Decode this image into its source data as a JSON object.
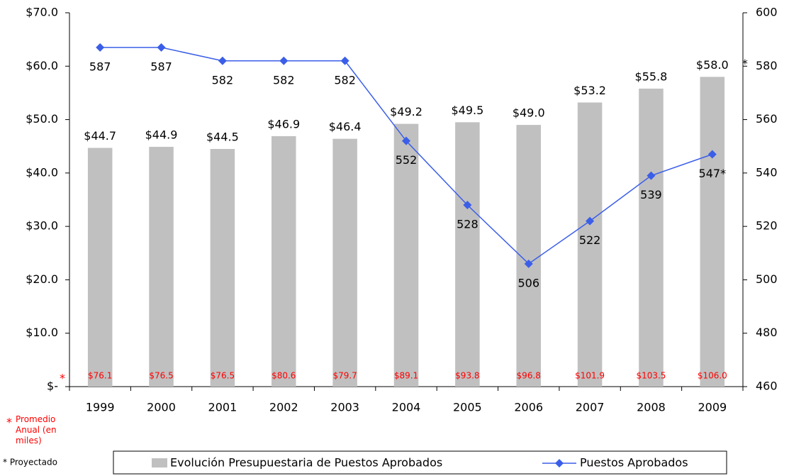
{
  "chart_data": {
    "type": "bar",
    "categories": [
      "1999",
      "2000",
      "2001",
      "2002",
      "2003",
      "2004",
      "2005",
      "2006",
      "2007",
      "2008",
      "2009"
    ],
    "series": [
      {
        "name": "Evolución Presupuestaria de Puestos Aprobados",
        "type": "bar",
        "color": "#c0c0c0",
        "values": [
          44.7,
          44.9,
          44.5,
          46.9,
          46.4,
          49.2,
          49.5,
          49.0,
          53.2,
          55.8,
          58.0
        ],
        "value_labels": [
          "$44.7",
          "$44.9",
          "$44.5",
          "$46.9",
          "$46.4",
          "$49.2",
          "$49.5",
          "$49.0",
          "$53.2",
          "$55.8",
          "$58.0"
        ]
      },
      {
        "name": "Puestos Aprobados",
        "type": "line",
        "axis": "y2",
        "color": "#3b5ee8",
        "values": [
          587,
          587,
          582,
          582,
          582,
          552,
          528,
          506,
          522,
          539,
          547
        ],
        "value_labels": [
          "587",
          "587",
          "582",
          "582",
          "582",
          "552",
          "528",
          "506",
          "522",
          "539",
          "547*"
        ]
      }
    ],
    "annual_average": {
      "marker": "*",
      "label": "Promedio Anual (en miles)",
      "color": "#ff0000",
      "values": [
        76.1,
        76.5,
        76.5,
        80.6,
        79.7,
        89.1,
        93.8,
        96.8,
        101.9,
        103.5,
        106.0
      ],
      "value_labels": [
        "$76.1",
        "$76.5",
        "$76.5",
        "$80.6",
        "$79.7",
        "$89.1",
        "$93.8",
        "$96.8",
        "$101.9",
        "$103.5",
        "$106.0"
      ]
    },
    "projection_marker": "*",
    "note": "* Proyectado",
    "ylim": [
      0,
      70
    ],
    "yticks": [
      {
        "value": 0,
        "label": "$-"
      },
      {
        "value": 10,
        "label": "$10.0"
      },
      {
        "value": 20,
        "label": "$20.0"
      },
      {
        "value": 30,
        "label": "$30.0"
      },
      {
        "value": 40,
        "label": "$40.0"
      },
      {
        "value": 50,
        "label": "$50.0"
      },
      {
        "value": 60,
        "label": "$60.0"
      },
      {
        "value": 70,
        "label": "$70.0"
      }
    ],
    "y2lim": [
      460,
      600
    ],
    "y2ticks": [
      460,
      480,
      500,
      520,
      540,
      560,
      580,
      600
    ],
    "legend": "bottom"
  }
}
